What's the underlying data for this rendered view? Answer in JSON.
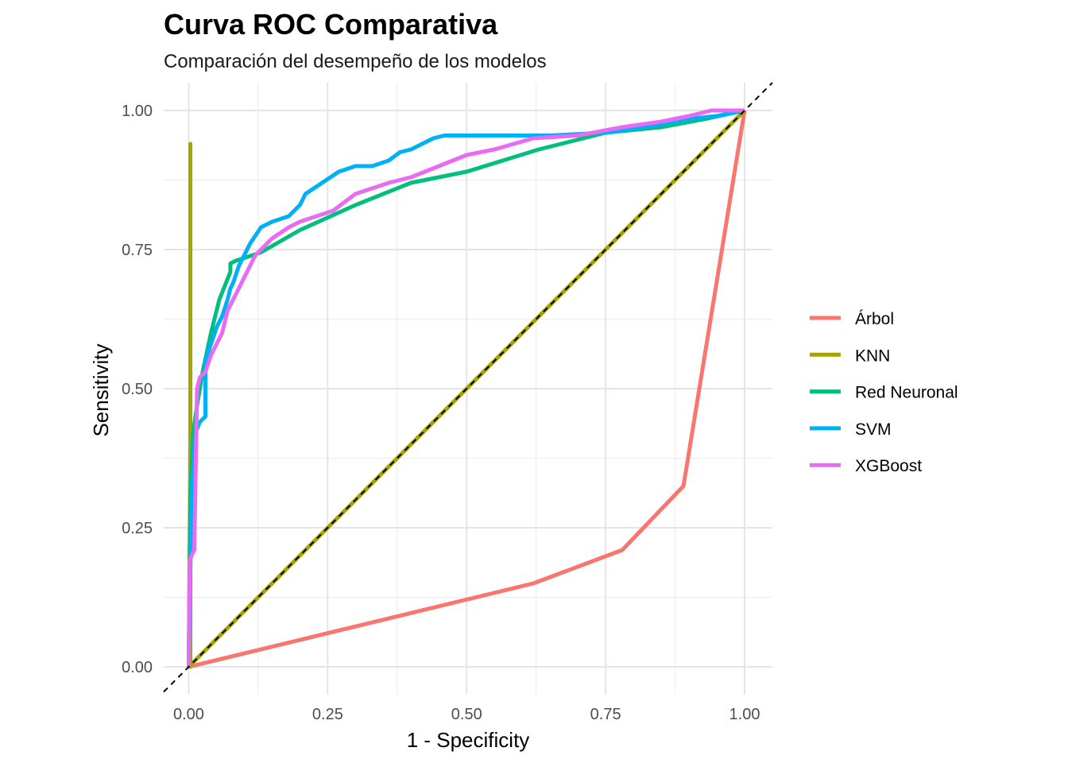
{
  "chart_data": {
    "type": "line",
    "title": "Curva ROC Comparativa",
    "subtitle": "Comparación del desempeño de los modelos",
    "xlabel": "1 - Specificity",
    "ylabel": "Sensitivity",
    "xlim": [
      -0.045,
      1.05
    ],
    "ylim": [
      -0.05,
      1.05
    ],
    "x_ticks": [
      "0.00",
      "0.25",
      "0.50",
      "0.75",
      "1.00"
    ],
    "y_ticks": [
      "0.00",
      "0.25",
      "0.50",
      "0.75",
      "1.00"
    ],
    "grid": true,
    "legend_position": "right",
    "reference_line": "dashed diagonal y = x",
    "series": [
      {
        "name": "Árbol",
        "color": "#F8766D",
        "x": [
          0.0,
          0.62,
          0.78,
          0.89,
          1.0
        ],
        "y": [
          0.0,
          0.15,
          0.21,
          0.325,
          1.0
        ]
      },
      {
        "name": "KNN",
        "color": "#A3A500",
        "x": [
          0.0,
          0.003,
          0.003,
          0.003,
          0.0,
          1.0
        ],
        "y": [
          0.0,
          0.0,
          0.94,
          0.4,
          0.0,
          1.0
        ]
      },
      {
        "name": "Red Neuronal",
        "color": "#00BF7D",
        "x": [
          0.0,
          0.003,
          0.008,
          0.015,
          0.025,
          0.04,
          0.055,
          0.075,
          0.075,
          0.085,
          0.13,
          0.2,
          0.3,
          0.4,
          0.5,
          0.63,
          0.75,
          0.85,
          0.93,
          1.0
        ],
        "y": [
          0.0,
          0.3,
          0.42,
          0.47,
          0.53,
          0.6,
          0.66,
          0.71,
          0.725,
          0.73,
          0.745,
          0.785,
          0.83,
          0.87,
          0.89,
          0.93,
          0.96,
          0.97,
          0.985,
          1.0
        ]
      },
      {
        "name": "SVM",
        "color": "#00B0F6",
        "x": [
          0.0,
          0.003,
          0.005,
          0.008,
          0.012,
          0.02,
          0.03,
          0.03,
          0.04,
          0.05,
          0.06,
          0.07,
          0.075,
          0.08,
          0.09,
          0.1,
          0.11,
          0.13,
          0.15,
          0.18,
          0.2,
          0.21,
          0.24,
          0.27,
          0.3,
          0.33,
          0.36,
          0.38,
          0.4,
          0.42,
          0.44,
          0.46,
          0.5,
          0.55,
          0.65,
          0.75,
          0.85,
          0.9,
          0.95,
          1.0
        ],
        "y": [
          0.0,
          0.18,
          0.28,
          0.35,
          0.42,
          0.44,
          0.45,
          0.55,
          0.58,
          0.61,
          0.63,
          0.66,
          0.68,
          0.69,
          0.72,
          0.74,
          0.76,
          0.79,
          0.8,
          0.81,
          0.83,
          0.85,
          0.87,
          0.89,
          0.9,
          0.9,
          0.91,
          0.925,
          0.93,
          0.94,
          0.95,
          0.955,
          0.955,
          0.955,
          0.955,
          0.96,
          0.975,
          0.985,
          0.99,
          1.0
        ]
      },
      {
        "name": "XGBoost",
        "color": "#E76BF3",
        "x": [
          0.0,
          0.002,
          0.005,
          0.01,
          0.015,
          0.02,
          0.03,
          0.04,
          0.05,
          0.06,
          0.07,
          0.08,
          0.09,
          0.1,
          0.12,
          0.15,
          0.18,
          0.2,
          0.23,
          0.26,
          0.3,
          0.33,
          0.36,
          0.4,
          0.45,
          0.5,
          0.55,
          0.62,
          0.7,
          0.78,
          0.85,
          0.9,
          0.94,
          1.0
        ],
        "y": [
          0.0,
          0.19,
          0.2,
          0.21,
          0.5,
          0.52,
          0.53,
          0.56,
          0.58,
          0.6,
          0.64,
          0.66,
          0.68,
          0.7,
          0.74,
          0.77,
          0.79,
          0.8,
          0.81,
          0.82,
          0.85,
          0.86,
          0.87,
          0.88,
          0.9,
          0.92,
          0.93,
          0.95,
          0.955,
          0.97,
          0.98,
          0.99,
          1.0,
          1.0
        ]
      }
    ]
  }
}
